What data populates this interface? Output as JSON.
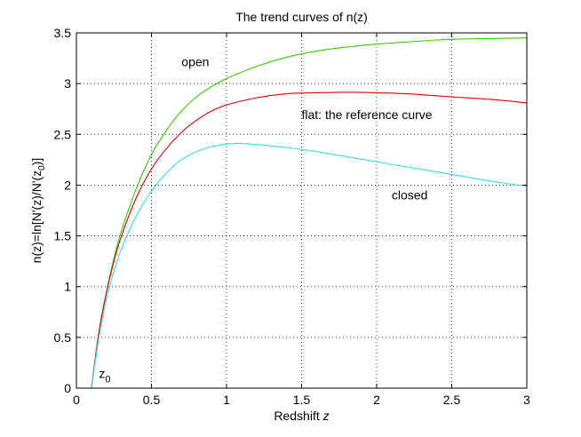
{
  "chart_data": {
    "type": "line",
    "title": "The trend curves of n(z)",
    "xlabel": "Redshift",
    "xlabel_var": "z",
    "ylabel": "n(z)=ln[N'(z)/N'(z",
    "ylabel_sub": "0",
    "ylabel_end": ")]",
    "xlim": [
      0,
      3
    ],
    "ylim": [
      0,
      3.5
    ],
    "xticks": [
      0,
      0.5,
      1,
      1.5,
      2,
      2.5,
      3
    ],
    "xtick_labels": [
      "0",
      "0.5",
      "1",
      "1.5",
      "2",
      "2.5",
      "3"
    ],
    "yticks": [
      0,
      0.5,
      1,
      1.5,
      2,
      2.5,
      3,
      3.5
    ],
    "ytick_labels": [
      "0",
      "0.5",
      "1",
      "1.5",
      "2",
      "2.5",
      "3",
      "3.5"
    ],
    "grid": true,
    "series": [
      {
        "label": "open",
        "color": "#33cc00",
        "x": [
          0.1,
          0.15,
          0.2,
          0.25,
          0.3,
          0.4,
          0.5,
          0.6,
          0.7,
          0.8,
          0.9,
          1.0,
          1.2,
          1.4,
          1.6,
          1.8,
          2.0,
          2.2,
          2.4,
          2.6,
          2.8,
          3.0
        ],
        "y": [
          0.0,
          0.55,
          0.95,
          1.28,
          1.55,
          1.97,
          2.3,
          2.54,
          2.73,
          2.87,
          2.97,
          3.05,
          3.17,
          3.26,
          3.32,
          3.36,
          3.39,
          3.41,
          3.43,
          3.44,
          3.445,
          3.45
        ]
      },
      {
        "label": "flat: the reference curve",
        "color": "#dd0000",
        "x": [
          0.1,
          0.15,
          0.2,
          0.25,
          0.3,
          0.4,
          0.5,
          0.6,
          0.7,
          0.8,
          0.9,
          1.0,
          1.2,
          1.4,
          1.6,
          1.8,
          2.0,
          2.2,
          2.4,
          2.6,
          2.8,
          3.0
        ],
        "y": [
          0.0,
          0.55,
          0.94,
          1.25,
          1.5,
          1.88,
          2.16,
          2.36,
          2.52,
          2.64,
          2.73,
          2.79,
          2.86,
          2.9,
          2.91,
          2.915,
          2.91,
          2.9,
          2.88,
          2.86,
          2.84,
          2.81
        ]
      },
      {
        "label": "closed",
        "color": "#33dddd",
        "x": [
          0.1,
          0.15,
          0.2,
          0.25,
          0.3,
          0.4,
          0.5,
          0.6,
          0.7,
          0.8,
          0.9,
          1.0,
          1.1,
          1.2,
          1.4,
          1.6,
          1.8,
          2.0,
          2.2,
          2.4,
          2.6,
          2.8,
          3.0
        ],
        "y": [
          0.0,
          0.5,
          0.88,
          1.15,
          1.37,
          1.7,
          1.94,
          2.12,
          2.25,
          2.33,
          2.38,
          2.405,
          2.41,
          2.4,
          2.37,
          2.33,
          2.28,
          2.23,
          2.18,
          2.13,
          2.08,
          2.03,
          1.99
        ]
      }
    ],
    "annotations": [
      {
        "text": "open",
        "x": 0.7,
        "y": 3.17
      },
      {
        "text": "flat: the reference curve",
        "x": 1.5,
        "y": 2.65
      },
      {
        "text": "closed",
        "x": 2.1,
        "y": 1.86
      },
      {
        "text": "z",
        "sub": "0",
        "x": 0.15,
        "y": 0.1
      }
    ]
  }
}
